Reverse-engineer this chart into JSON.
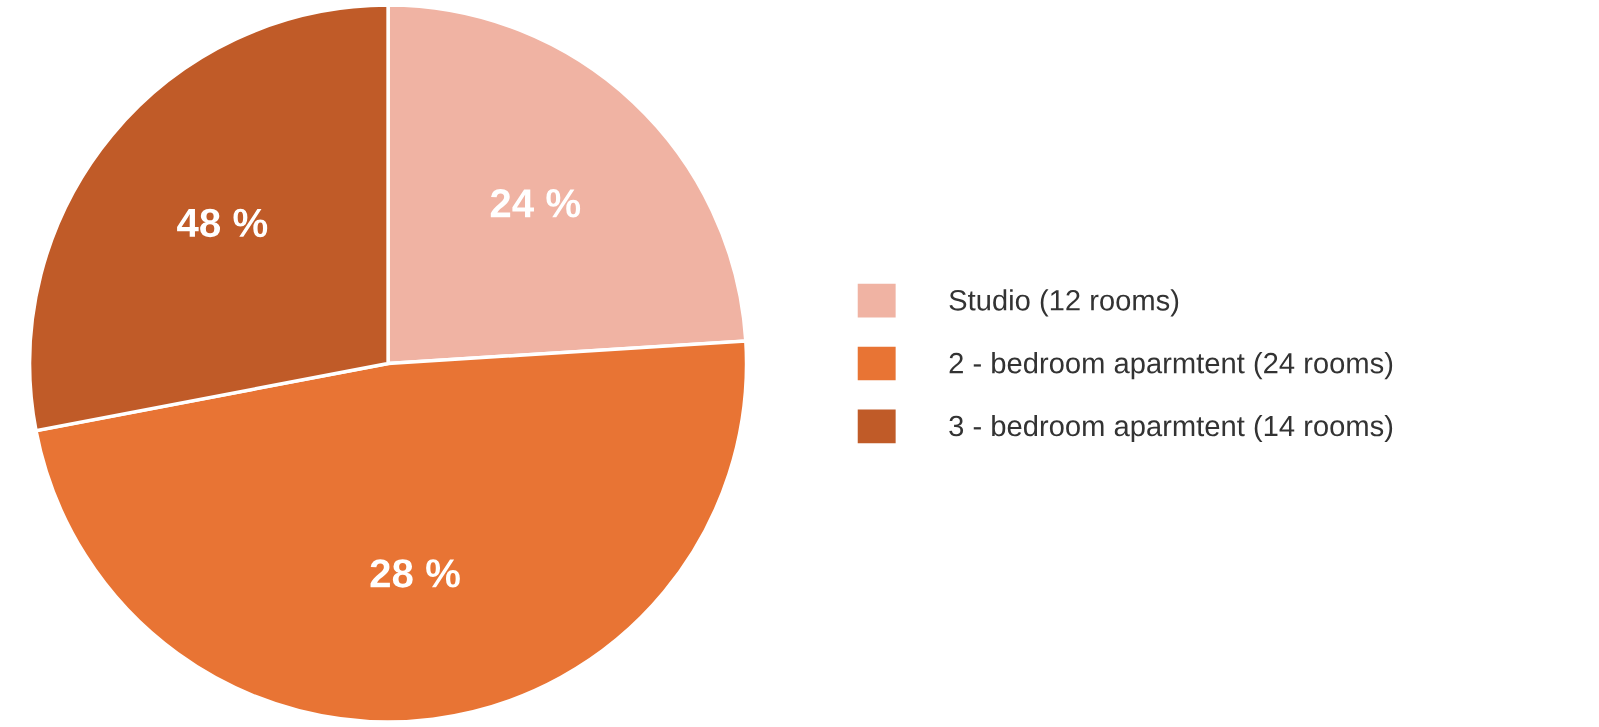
{
  "chart_data": {
    "type": "pie",
    "categories": [
      "Studio (12 rooms)",
      "2 - bedroom aparmtent (24 rooms)",
      "3 - bedroom aparmtent (14 rooms)"
    ],
    "values": [
      12,
      24,
      14
    ],
    "annotations": [
      "24 %",
      "28 %",
      "48 %"
    ],
    "colors": [
      "#f0b3a3",
      "#e87434",
      "#c05b28"
    ],
    "legend": "right"
  }
}
